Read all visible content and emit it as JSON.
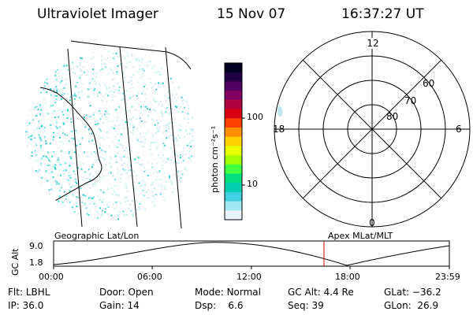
{
  "header": {
    "instrument": "Ultraviolet Imager",
    "date": "15 Nov 07",
    "time": "16:37:27 UT"
  },
  "left_panel": {
    "label": "Geographic Lat/Lon"
  },
  "colorbar": {
    "unit_label": "photon cm⁻²s⁻¹",
    "ticks": [
      "100",
      "10"
    ],
    "colors": [
      "#000022",
      "#200040",
      "#500060",
      "#800060",
      "#b00040",
      "#d80010",
      "#ff4000",
      "#ff9000",
      "#ffd000",
      "#e8ff00",
      "#a0ff00",
      "#40ff40",
      "#00e080",
      "#00d0b0",
      "#40d0e0",
      "#a0e8f0",
      "#e8f4f8"
    ]
  },
  "right_panel": {
    "label": "Apex MLat/MLT",
    "hour_labels": {
      "top": "12",
      "left": "18",
      "right": "6",
      "bottom": "0"
    },
    "lat_labels": [
      "60",
      "70",
      "80"
    ]
  },
  "altitude_plot": {
    "ylabel": "GC Alt",
    "y_ticks": [
      "9.0",
      "1.8"
    ],
    "x_ticks": [
      "00:00",
      "06:00",
      "12:00",
      "18:00",
      "23:59"
    ],
    "current_marker_color": "#cc0000"
  },
  "info": {
    "filter_label": "Flt:",
    "filter_value": "LBHL",
    "ip_label": "IP:",
    "ip_value": "36.0",
    "door_label": "Door:",
    "door_value": "Open",
    "gain_label": "Gain:",
    "gain_value": "14",
    "mode_label": "Mode:",
    "mode_value": "Normal",
    "dsp_label": "Dsp:",
    "dsp_value": "6.6",
    "gcalt_label": "GC Alt:",
    "gcalt_value": "4.4 Re",
    "seq_label": "Seq:",
    "seq_value": "39",
    "glat_label": "GLat:",
    "glat_value": "−36.2",
    "glon_label": "GLon:",
    "glon_value": "26.9"
  }
}
